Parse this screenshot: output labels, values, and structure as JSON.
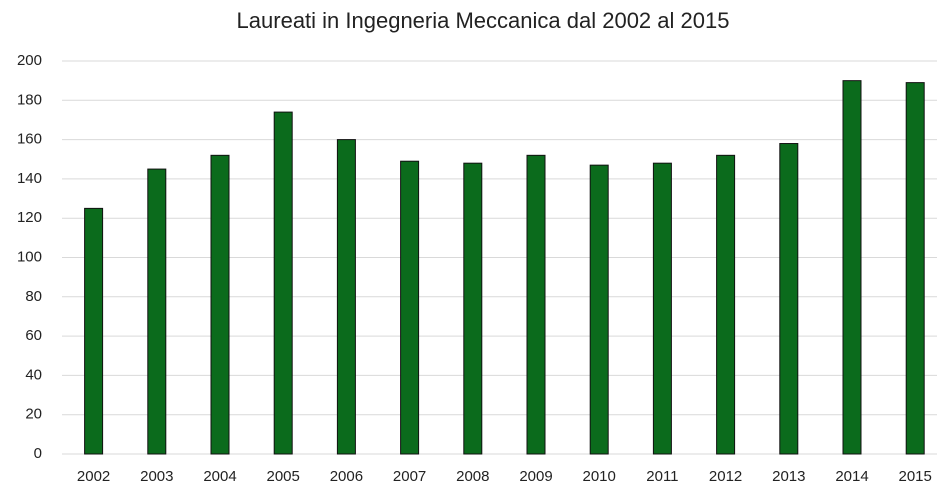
{
  "chart_data": {
    "type": "bar",
    "title": "Laureati in Ingegneria Meccanica dal 2002 al 2015",
    "categories": [
      "2002",
      "2003",
      "2004",
      "2005",
      "2006",
      "2007",
      "2008",
      "2009",
      "2010",
      "2011",
      "2012",
      "2013",
      "2014",
      "2015"
    ],
    "values": [
      125,
      145,
      152,
      174,
      160,
      149,
      148,
      152,
      147,
      148,
      152,
      158,
      190,
      189
    ],
    "color": "#0b6b1c",
    "ylim": [
      0,
      200
    ],
    "yticks": [
      0,
      20,
      40,
      60,
      80,
      100,
      120,
      140,
      160,
      180,
      200
    ],
    "grid": true
  }
}
